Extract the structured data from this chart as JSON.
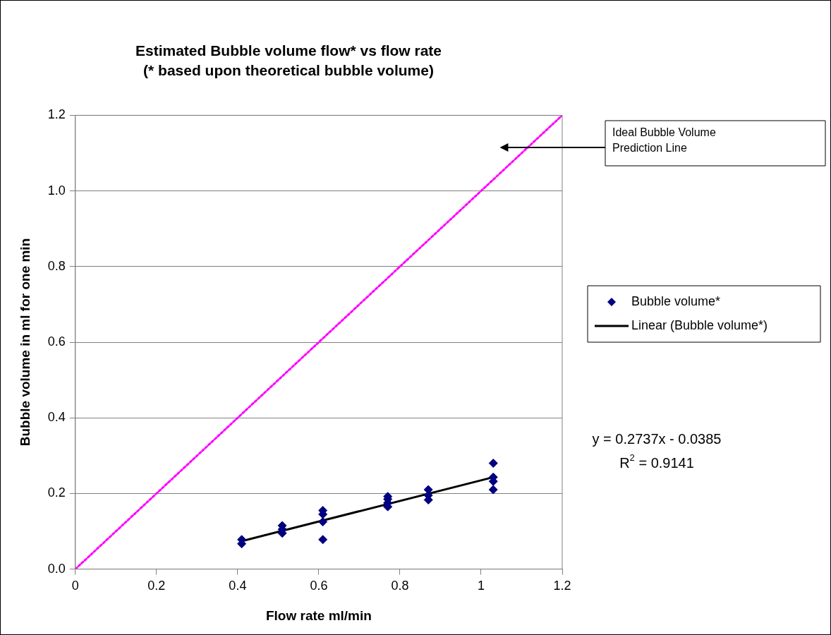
{
  "chart_data": {
    "type": "scatter",
    "title": "Estimated Bubble volume flow* vs flow rate",
    "subtitle": "(* based upon theoretical bubble volume)",
    "xlabel": "Flow rate ml/min",
    "ylabel": "Bubble volume in ml for one min",
    "xlim": [
      0,
      1.2
    ],
    "xticks": [
      0,
      0.2,
      0.4,
      0.6,
      0.8,
      1,
      1.2
    ],
    "ylim": [
      0,
      1.2
    ],
    "yticks": [
      {
        "value": 0,
        "label": "0.0"
      },
      {
        "value": 0.2,
        "label": "0.2"
      },
      {
        "value": 0.4,
        "label": "0.4"
      },
      {
        "value": 0.6,
        "label": "0.6"
      },
      {
        "value": 0.8,
        "label": "0.8"
      },
      {
        "value": 1,
        "label": "1.0"
      },
      {
        "value": 1.2,
        "label": "1.2"
      }
    ],
    "grid": "y",
    "legend": "right",
    "series": [
      {
        "name": "Bubble volume*",
        "type": "scatter",
        "color": "#000080",
        "marker": "diamond",
        "x": [
          0.41,
          0.41,
          0.51,
          0.51,
          0.51,
          0.61,
          0.61,
          0.61,
          0.61,
          0.77,
          0.77,
          0.77,
          0.77,
          0.87,
          0.87,
          0.87,
          1.03,
          1.03,
          1.03,
          1.03
        ],
        "values": [
          0.078,
          0.067,
          0.115,
          0.105,
          0.095,
          0.155,
          0.145,
          0.125,
          0.078,
          0.192,
          0.185,
          0.175,
          0.165,
          0.21,
          0.195,
          0.183,
          0.28,
          0.243,
          0.232,
          0.21
        ]
      },
      {
        "name": "Linear (Bubble volume*)",
        "type": "line",
        "color": "#000000",
        "marker": "none",
        "x": [
          0.41,
          1.03
        ],
        "values": [
          0.074,
          0.243
        ]
      },
      {
        "type": "line",
        "color": "#ff00ff",
        "marker": "none",
        "line_style": "dotted",
        "x": [
          0,
          1.2
        ],
        "values": [
          0,
          1.2
        ]
      }
    ],
    "annotations": [
      "Ideal Bubble Volume Prediction Line",
      "y = 0.2737x - 0.0385",
      "R$^{2}$ = 0.9141"
    ]
  }
}
